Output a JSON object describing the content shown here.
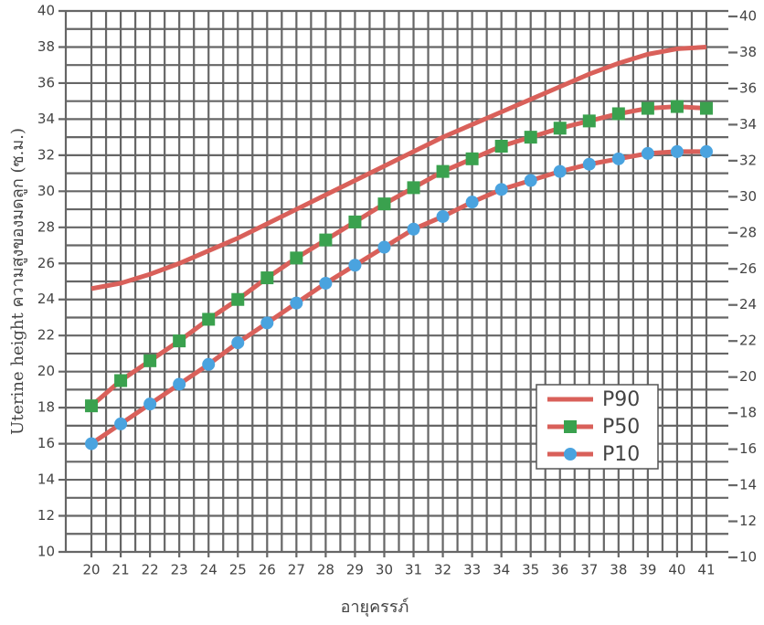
{
  "chart_data": {
    "type": "line",
    "x_label": "อายุครรภ์",
    "y_label": "Uterine height ความสูงของมดลูก (ซ.ม.)",
    "x": [
      20,
      21,
      22,
      23,
      24,
      25,
      26,
      27,
      28,
      29,
      30,
      31,
      32,
      33,
      34,
      35,
      36,
      37,
      38,
      39,
      40,
      41
    ],
    "xlim": [
      19.125,
      41.75
    ],
    "ylim": [
      10,
      40
    ],
    "yticks": [
      10,
      12,
      14,
      16,
      18,
      20,
      22,
      24,
      26,
      28,
      30,
      32,
      34,
      36,
      38,
      40
    ],
    "y2lim": [
      10,
      40
    ],
    "y2ticks": [
      10,
      12,
      14,
      16,
      18,
      20,
      22,
      24,
      26,
      28,
      30,
      32,
      34,
      36,
      38,
      40
    ],
    "grid": true,
    "legend": "right",
    "series": [
      {
        "name": "P90",
        "color": "#d9605a",
        "marker": "none",
        "values": [
          24.6,
          24.9,
          25.4,
          26.0,
          26.7,
          27.4,
          28.2,
          29.0,
          29.8,
          30.6,
          31.4,
          32.2,
          33.0,
          33.7,
          34.4,
          35.1,
          35.8,
          36.5,
          37.1,
          37.6,
          37.9,
          38.0
        ]
      },
      {
        "name": "P50",
        "color": "#d9605a",
        "marker_color": "#3aa14e",
        "marker": "square",
        "values": [
          18.1,
          19.5,
          20.6,
          21.7,
          22.9,
          24.0,
          25.2,
          26.3,
          27.3,
          28.3,
          29.3,
          30.2,
          31.1,
          31.8,
          32.5,
          33.0,
          33.5,
          33.9,
          34.3,
          34.6,
          34.7,
          34.6
        ]
      },
      {
        "name": "P10",
        "color": "#d9605a",
        "marker_color": "#4aa3df",
        "marker": "circle",
        "values": [
          16.0,
          17.1,
          18.2,
          19.3,
          20.4,
          21.6,
          22.7,
          23.8,
          24.9,
          25.9,
          26.9,
          27.9,
          28.6,
          29.4,
          30.1,
          30.6,
          31.1,
          31.5,
          31.8,
          32.1,
          32.2,
          32.2
        ]
      }
    ]
  }
}
